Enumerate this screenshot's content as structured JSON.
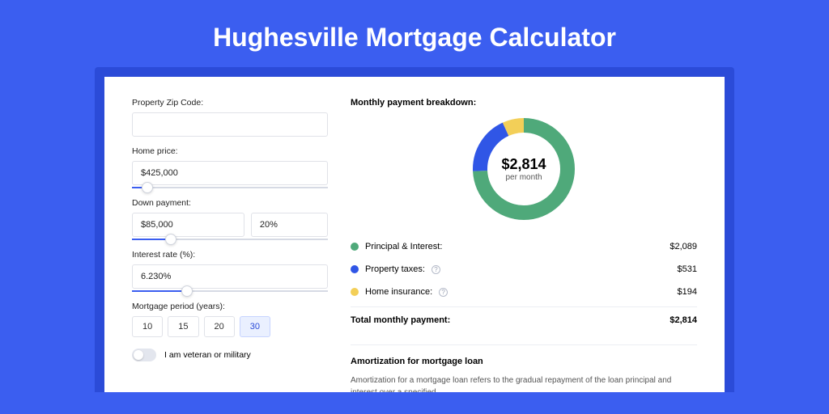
{
  "title": "Hughesville Mortgage Calculator",
  "form": {
    "zip_label": "Property Zip Code:",
    "zip_value": "",
    "home_price_label": "Home price:",
    "home_price_value": "$425,000",
    "home_price_slider_pct": 8,
    "down_payment_label": "Down payment:",
    "down_payment_value": "$85,000",
    "down_payment_pct_value": "20%",
    "down_payment_slider_pct": 20,
    "interest_label": "Interest rate (%):",
    "interest_value": "6.230%",
    "interest_slider_pct": 28,
    "period_label": "Mortgage period (years):",
    "period_options": [
      "10",
      "15",
      "20",
      "30"
    ],
    "period_selected": "30",
    "veteran_label": "I am veteran or military",
    "veteran_on": false
  },
  "breakdown": {
    "heading": "Monthly payment breakdown:",
    "donut": {
      "center_amount": "$2,814",
      "center_sub": "per month",
      "size": 128,
      "stroke_width": 18,
      "radius": 54,
      "background": "#ffffff",
      "segments": [
        {
          "key": "principal_interest",
          "fraction": 0.742,
          "color": "#4fa97a"
        },
        {
          "key": "property_taxes",
          "fraction": 0.189,
          "color": "#3056e6"
        },
        {
          "key": "home_insurance",
          "fraction": 0.069,
          "color": "#f3cf58"
        }
      ]
    },
    "items": [
      {
        "label": "Principal & Interest:",
        "value": "$2,089",
        "color": "#4fa97a",
        "info": false
      },
      {
        "label": "Property taxes:",
        "value": "$531",
        "color": "#3056e6",
        "info": true
      },
      {
        "label": "Home insurance:",
        "value": "$194",
        "color": "#f3cf58",
        "info": true
      }
    ],
    "total_label": "Total monthly payment:",
    "total_value": "$2,814"
  },
  "amortization": {
    "heading": "Amortization for mortgage loan",
    "text": "Amortization for a mortgage loan refers to the gradual repayment of the loan principal and interest over a specified"
  }
}
